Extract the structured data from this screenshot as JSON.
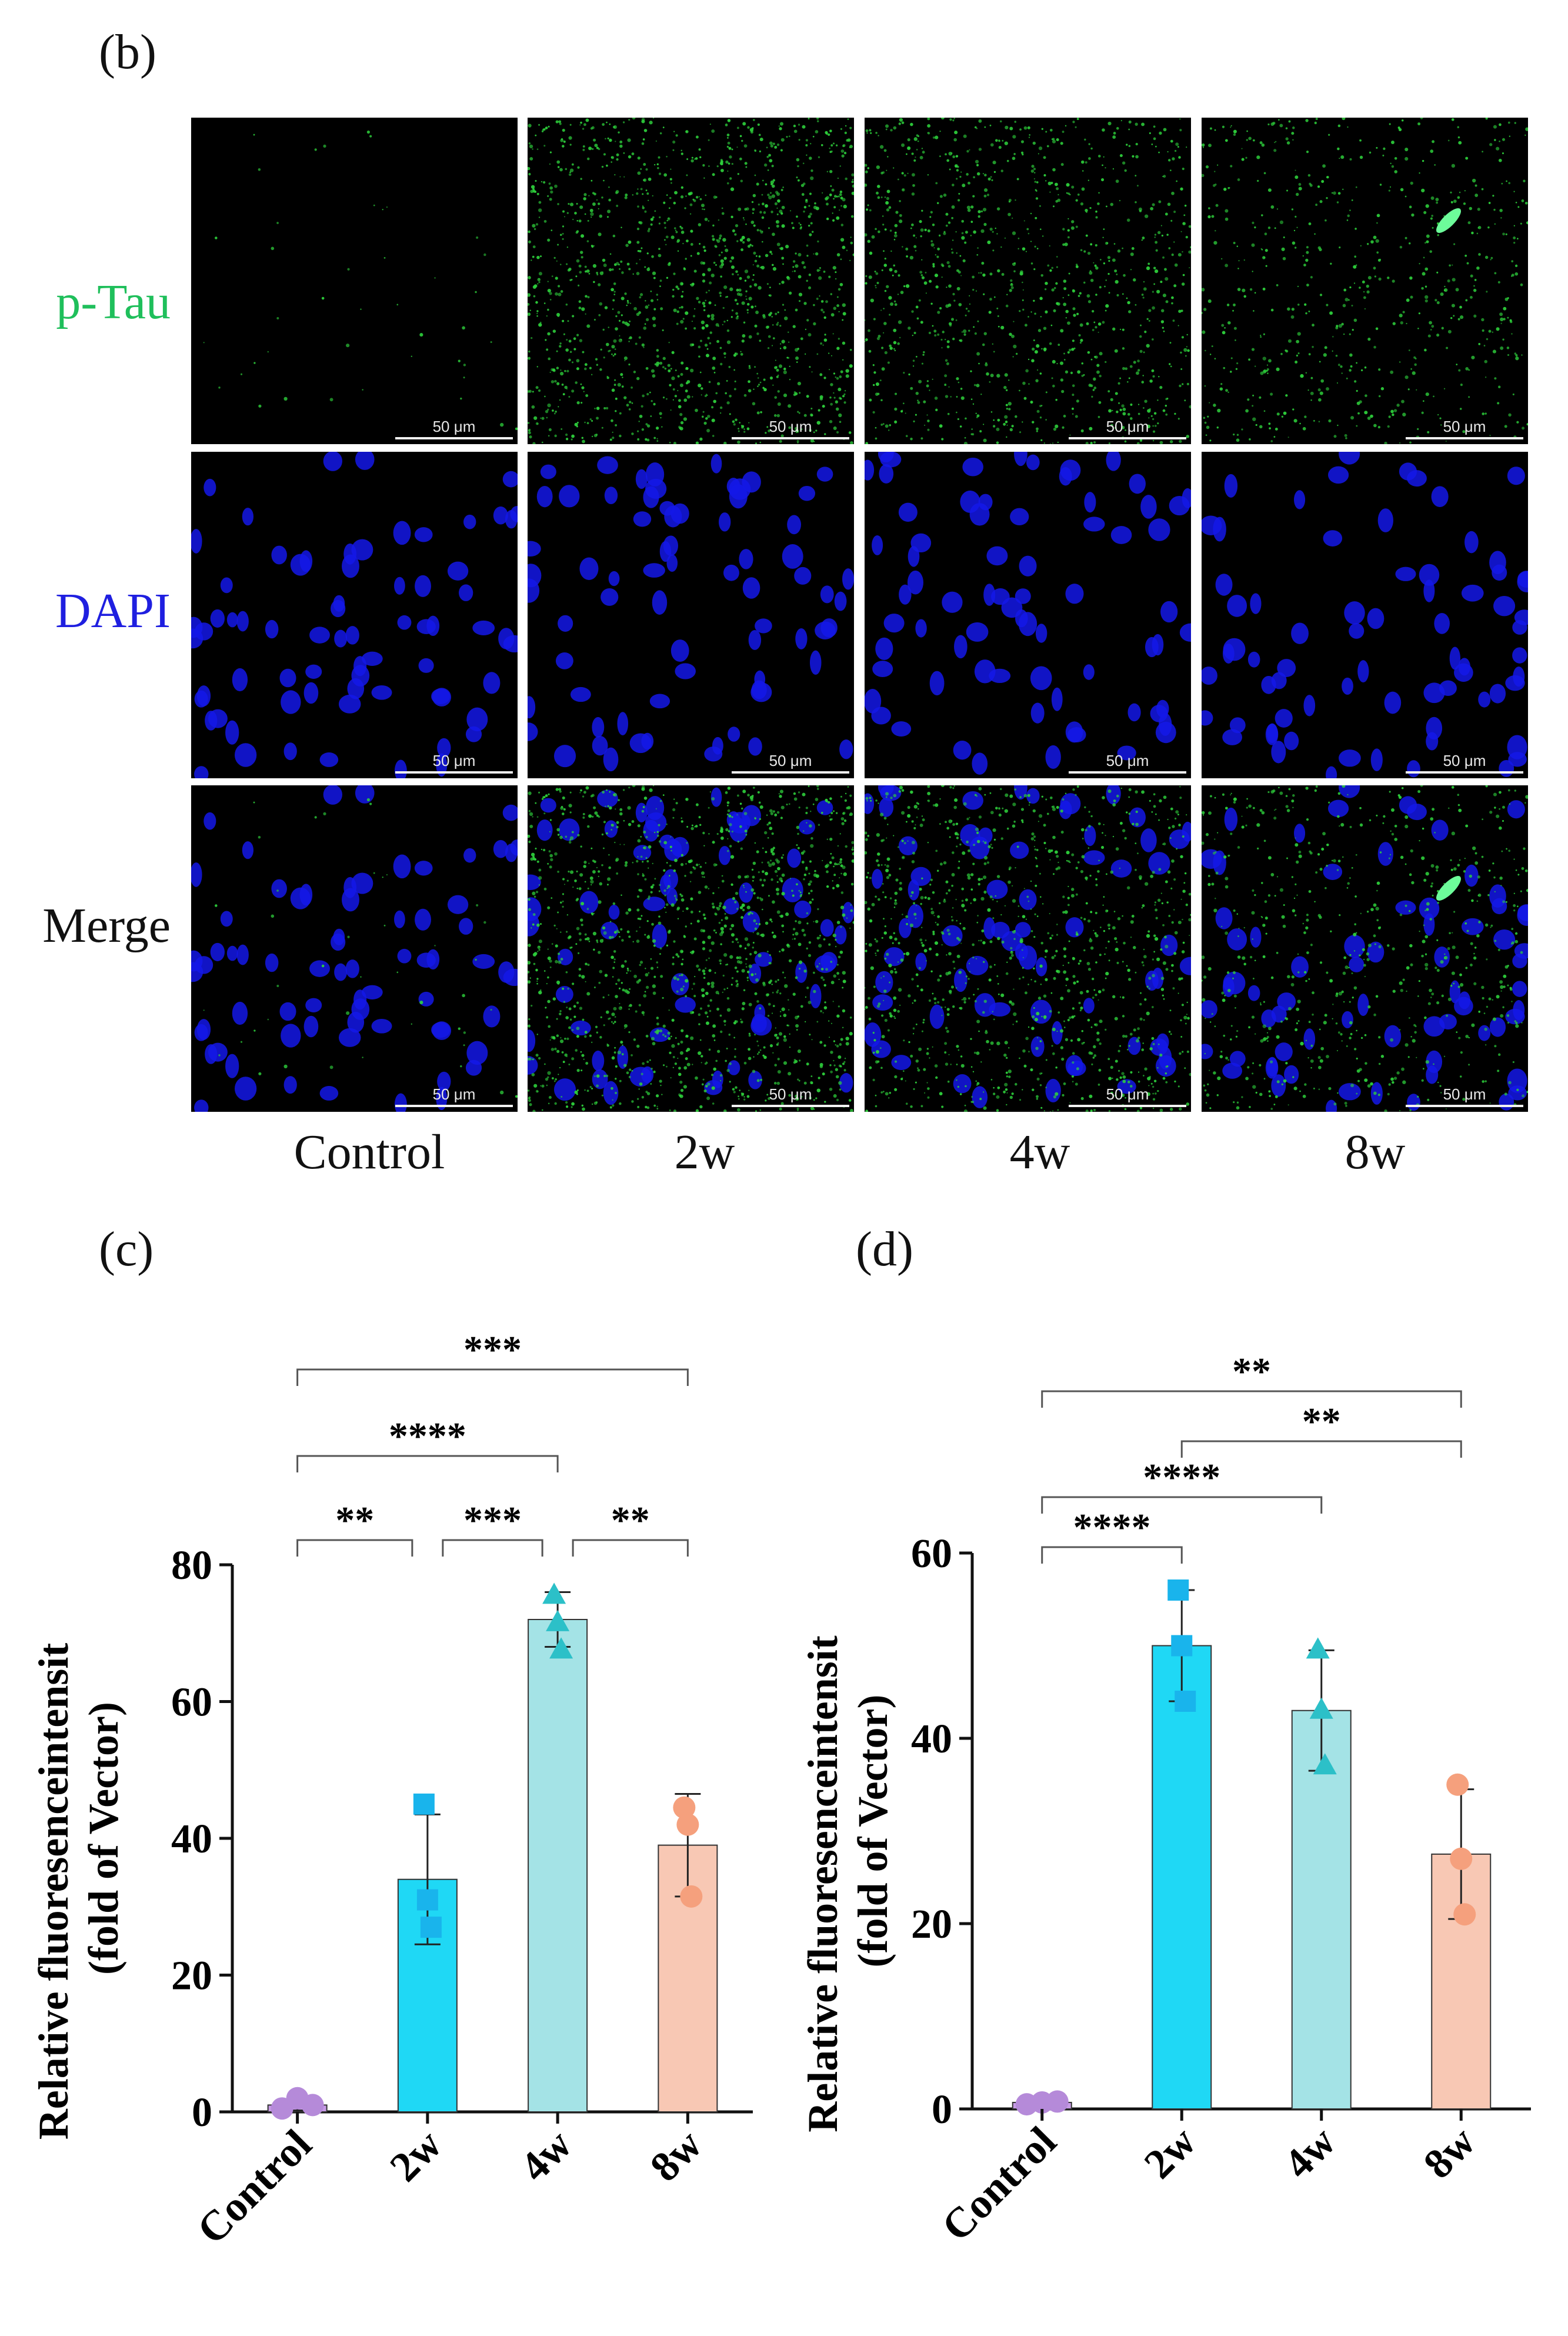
{
  "panels": {
    "b": "(b)",
    "c": "(c)",
    "d": "(d)"
  },
  "colors": {
    "ptau_label": "#1fbf5b",
    "dapi_label": "#1f1fe0",
    "merge_label": "#111111",
    "control": "#c79be6",
    "w2": "#1fd8f5",
    "w4": "#a4e3e6",
    "w8": "#f8c8b4",
    "control_marker": "#b58ad9",
    "w2_marker": "#19b4ec",
    "w4_marker": "#2cc0c8",
    "w8_marker": "#f5a07d"
  },
  "microscopy": {
    "rows": [
      {
        "key": "ptau",
        "label": "p-Tau"
      },
      {
        "key": "dapi",
        "label": "DAPI"
      },
      {
        "key": "merge",
        "label": "Merge"
      }
    ],
    "columns": [
      "Control",
      "2w",
      "4w",
      "8w"
    ],
    "scalebar": "50 μm"
  },
  "chart_data": [
    {
      "panel": "(c)",
      "type": "bar",
      "categories": [
        "Control",
        "2w",
        "4w",
        "8w"
      ],
      "values": [
        1,
        34,
        72,
        39
      ],
      "errors": [
        0.8,
        9.5,
        4,
        7.5
      ],
      "points": [
        [
          0.5,
          2,
          1
        ],
        [
          45,
          27,
          31
        ],
        [
          75.5,
          67.5,
          71.5
        ],
        [
          44.5,
          31.5,
          42
        ]
      ],
      "markers": [
        "circle",
        "square",
        "triangle",
        "circle"
      ],
      "ylabel": "Relative fluoresenceintensit",
      "ylabel2": "(fold of Vector)",
      "ylim": [
        0,
        80
      ],
      "yticks": [
        0,
        20,
        40,
        60,
        80
      ],
      "significance": [
        {
          "from": 0,
          "to": 3,
          "label": "***"
        },
        {
          "from": 0,
          "to": 2,
          "label": "****"
        },
        {
          "from": 0,
          "to": 1,
          "label": "**"
        },
        {
          "from": 1,
          "to": 2,
          "label": "***"
        },
        {
          "from": 2,
          "to": 3,
          "label": "**"
        }
      ]
    },
    {
      "panel": "(d)",
      "type": "bar",
      "categories": [
        "Control",
        "2w",
        "4w",
        "8w"
      ],
      "values": [
        0.7,
        50,
        43,
        27.5
      ],
      "errors": [
        0.4,
        6,
        6.5,
        7
      ],
      "points": [
        [
          0.5,
          0.7,
          0.8
        ],
        [
          56,
          44,
          50
        ],
        [
          49.5,
          37,
          43
        ],
        [
          35,
          21,
          27
        ]
      ],
      "markers": [
        "circle",
        "square",
        "triangle",
        "circle"
      ],
      "ylabel": "Relative fluoresenceintensit",
      "ylabel2": "(fold of Vector)",
      "ylim": [
        0,
        60
      ],
      "yticks": [
        0,
        20,
        40,
        60
      ],
      "significance": [
        {
          "from": 0,
          "to": 3,
          "label": "**"
        },
        {
          "from": 1,
          "to": 3,
          "label": "**"
        },
        {
          "from": 0,
          "to": 2,
          "label": "****"
        },
        {
          "from": 0,
          "to": 1,
          "label": "****"
        }
      ]
    }
  ]
}
